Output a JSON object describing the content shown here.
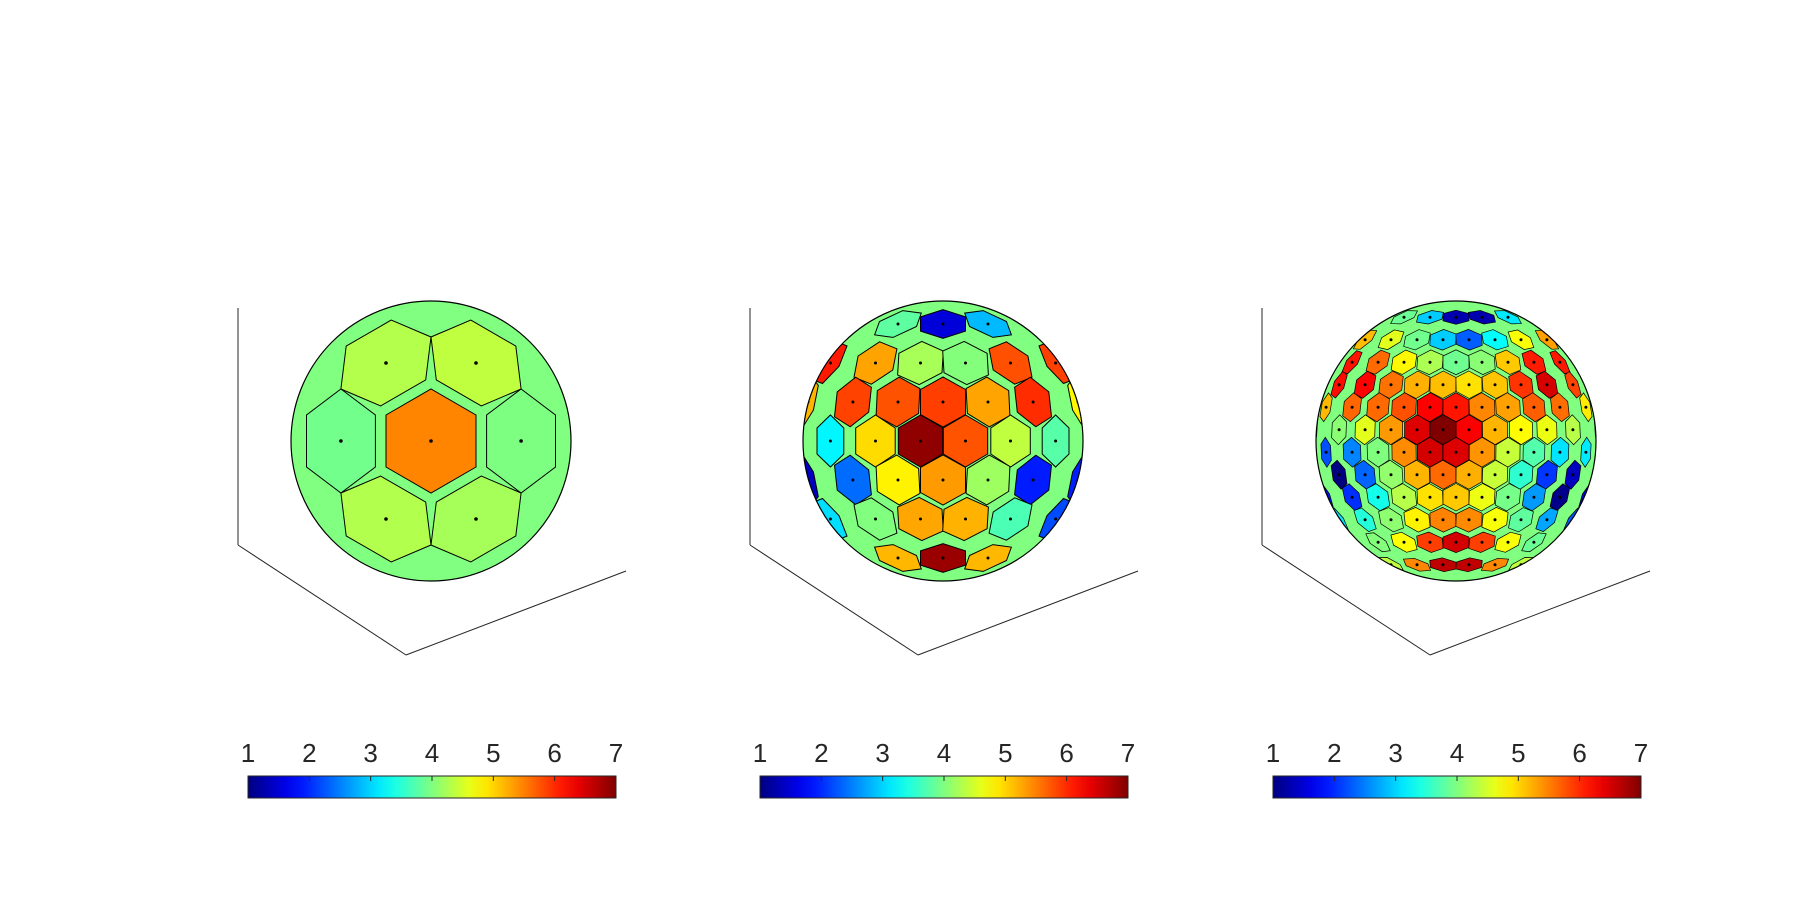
{
  "figure": {
    "background": "#ffffff",
    "panels": 3
  },
  "chart_data": [
    {
      "type": "heatmap",
      "subtype": "spherical-voronoi",
      "title": "",
      "colormap": "jet",
      "clim": [
        1,
        7
      ],
      "colorbar": {
        "position": "bottom",
        "ticks": [
          "1",
          "2",
          "3",
          "4",
          "5",
          "6",
          "7"
        ]
      },
      "cell_density": "coarse",
      "values_note_visible": "",
      "hotspots": [
        {
          "label": "",
          "value": 5.2
        }
      ]
    },
    {
      "type": "heatmap",
      "subtype": "spherical-voronoi",
      "title": "",
      "colormap": "jet",
      "clim": [
        1,
        7
      ],
      "colorbar": {
        "position": "bottom",
        "ticks": [
          "1",
          "2",
          "3",
          "4",
          "5",
          "6",
          "7"
        ]
      },
      "cell_density": "medium"
    },
    {
      "type": "heatmap",
      "subtype": "spherical-voronoi",
      "title": "",
      "colormap": "jet",
      "clim": [
        1,
        7
      ],
      "colorbar": {
        "position": "bottom",
        "ticks": [
          "1",
          "2",
          "3",
          "4",
          "5",
          "6",
          "7"
        ]
      },
      "cell_density": "fine"
    }
  ]
}
